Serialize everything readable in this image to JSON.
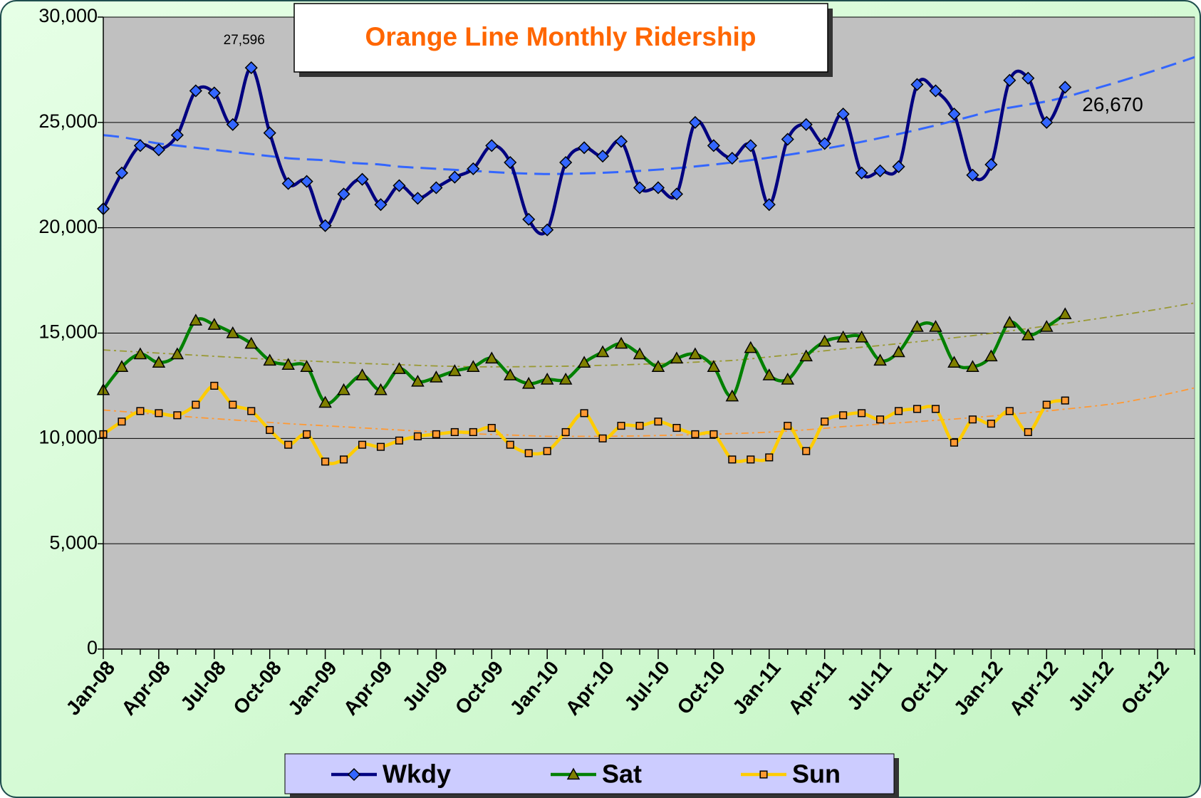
{
  "chart_data": {
    "type": "line",
    "title": "Orange Line Monthly Ridership",
    "categories": [
      "Jan-08",
      null,
      null,
      "Apr-08",
      null,
      null,
      "Jul-08",
      null,
      null,
      "Oct-08",
      null,
      null,
      "Jan-09",
      null,
      null,
      "Apr-09",
      null,
      null,
      "Jul-09",
      null,
      null,
      "Oct-09",
      null,
      null,
      "Jan-10",
      null,
      null,
      "Apr-10",
      null,
      null,
      "Jul-10",
      null,
      null,
      "Oct-10",
      null,
      null,
      "Jan-11",
      null,
      null,
      "Apr-11",
      null,
      null,
      "Jul-11",
      null,
      null,
      "Oct-11",
      null,
      null,
      "Jan-12",
      null,
      null,
      "Apr-12",
      null,
      null,
      "Jul-12",
      null,
      null,
      "Oct-12",
      null,
      null
    ],
    "series": [
      {
        "name": "Wkdy",
        "color": "#000080",
        "marker_color": "#3366ff",
        "marker": "diamond",
        "values": [
          20900,
          22600,
          23900,
          23700,
          24400,
          26500,
          26400,
          24900,
          27596,
          24500,
          22100,
          22200,
          20100,
          21600,
          22300,
          21100,
          22000,
          21400,
          21900,
          22400,
          22800,
          23900,
          23100,
          20400,
          19900,
          23100,
          23800,
          23400,
          24100,
          21900,
          21900,
          21600,
          25000,
          23900,
          23300,
          23900,
          21100,
          24200,
          24900,
          24000,
          25400,
          22600,
          22700,
          22900,
          26800,
          26500,
          25400,
          22500,
          23000,
          27000,
          27100,
          25000,
          26670,
          null,
          null,
          null,
          null,
          null,
          null,
          null
        ],
        "value_labels": [
          null,
          null,
          null,
          null,
          null,
          null,
          null,
          null,
          "27,596",
          null,
          null,
          null,
          null,
          null,
          null,
          null,
          null,
          null,
          null,
          null,
          null,
          null,
          null,
          null,
          null,
          null,
          null,
          null,
          null,
          null,
          null,
          null,
          null,
          null,
          null,
          null,
          null,
          null,
          null,
          null,
          null,
          null,
          null,
          null,
          null,
          null,
          null,
          null,
          null,
          null,
          null,
          null,
          "26,670",
          null,
          null,
          null,
          null,
          null,
          null,
          null
        ]
      },
      {
        "name": "Sat",
        "color": "#008000",
        "marker_color": "#808000",
        "marker": "triangle",
        "values": [
          12300,
          13400,
          14000,
          13600,
          14000,
          15600,
          15400,
          15000,
          14500,
          13700,
          13500,
          13400,
          11700,
          12300,
          13000,
          12300,
          13300,
          12700,
          12900,
          13200,
          13400,
          13800,
          13000,
          12600,
          12800,
          12800,
          13600,
          14100,
          14500,
          14000,
          13400,
          13800,
          14000,
          13400,
          12000,
          14300,
          13000,
          12800,
          13900,
          14600,
          14800,
          14800,
          13700,
          14100,
          15300,
          15300,
          13600,
          13400,
          13900,
          15500,
          14900,
          15300,
          15900,
          null,
          null,
          null,
          null,
          null,
          null,
          null
        ]
      },
      {
        "name": "Sun",
        "color": "#ffcc00",
        "marker_color": "#ff9933",
        "marker": "square",
        "values": [
          10200,
          10800,
          11300,
          11200,
          11100,
          11600,
          12500,
          11600,
          11300,
          10400,
          9700,
          10200,
          8900,
          9000,
          9700,
          9600,
          9900,
          10100,
          10200,
          10300,
          10300,
          10500,
          9700,
          9300,
          9400,
          10300,
          11200,
          10000,
          10600,
          10600,
          10800,
          10500,
          10200,
          10200,
          9000,
          9000,
          9100,
          10600,
          9400,
          10800,
          11100,
          11200,
          10900,
          11300,
          11400,
          11400,
          9800,
          10900,
          10700,
          11300,
          10300,
          11600,
          11800,
          null,
          null,
          null,
          null,
          null,
          null,
          null
        ]
      }
    ],
    "trendlines": [
      {
        "color": "#3366ff",
        "dash": "dashed",
        "values": [
          24400,
          24300,
          24150,
          24000,
          23900,
          23800,
          23700,
          23600,
          23500,
          23400,
          23300,
          23250,
          23200,
          23100,
          23050,
          23000,
          22900,
          22850,
          22800,
          22750,
          22700,
          22650,
          22600,
          22570,
          22550,
          22560,
          22580,
          22610,
          22650,
          22700,
          22760,
          22830,
          22910,
          23000,
          23100,
          23210,
          23330,
          23460,
          23600,
          23750,
          23910,
          24080,
          24260,
          24450,
          24650,
          24860,
          25080,
          25310,
          25550,
          25700,
          25850,
          26000,
          26200,
          26450,
          26700,
          26960,
          27230,
          27510,
          27800,
          28100
        ]
      },
      {
        "color": "#999933",
        "dash": "dashdot",
        "values": [
          14200,
          14150,
          14100,
          14050,
          14000,
          13950,
          13900,
          13850,
          13800,
          13760,
          13720,
          13680,
          13640,
          13600,
          13560,
          13530,
          13500,
          13470,
          13440,
          13420,
          13400,
          13400,
          13400,
          13410,
          13420,
          13430,
          13450,
          13470,
          13490,
          13520,
          13550,
          13580,
          13620,
          13660,
          13700,
          13780,
          13870,
          13960,
          14060,
          14160,
          14250,
          14330,
          14410,
          14500,
          14590,
          14680,
          14780,
          14880,
          14990,
          15100,
          15220,
          15340,
          15460,
          15590,
          15720,
          15850,
          15990,
          16130,
          16280,
          16430
        ]
      },
      {
        "color": "#ff9933",
        "dash": "dashdot",
        "values": [
          11350,
          11280,
          11210,
          11140,
          11070,
          11000,
          10940,
          10880,
          10820,
          10760,
          10700,
          10650,
          10600,
          10550,
          10500,
          10450,
          10400,
          10350,
          10300,
          10260,
          10220,
          10190,
          10160,
          10130,
          10100,
          10100,
          10100,
          10100,
          10110,
          10120,
          10140,
          10160,
          10180,
          10200,
          10230,
          10260,
          10300,
          10350,
          10410,
          10480,
          10560,
          10620,
          10680,
          10740,
          10800,
          10860,
          10920,
          10990,
          11060,
          11140,
          11220,
          11300,
          11390,
          11480,
          11580,
          11690,
          11850,
          12020,
          12200,
          12400
        ]
      }
    ],
    "ylim": [
      0,
      30000
    ],
    "yticks": [
      0,
      {
        "value": 5000,
        "label": "5,000"
      },
      {
        "value": 10000,
        "label": "10,000"
      },
      {
        "value": 15000,
        "label": "15,000"
      },
      {
        "value": 20000,
        "label": "20,000"
      },
      {
        "value": 25000,
        "label": "25,000"
      },
      {
        "value": 30000,
        "label": "30,000"
      }
    ],
    "grid": true,
    "legend": "bottom"
  }
}
